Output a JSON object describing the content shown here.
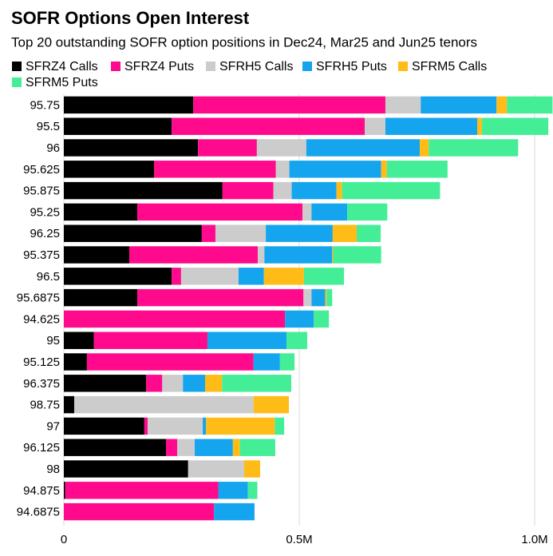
{
  "chart_data": {
    "type": "stacked_bar_horizontal",
    "title": "SOFR Options Open Interest",
    "subtitle": "Top 20 outstanding SOFR option positions in Dec24, Mar25 and Jun25 tenors",
    "categories": [
      "95.75",
      "95.5",
      "96",
      "95.625",
      "95.875",
      "95.25",
      "96.25",
      "95.375",
      "96.5",
      "95.6875",
      "94.625",
      "95",
      "95.125",
      "96.375",
      "98.75",
      "97",
      "96.125",
      "98",
      "94.875",
      "94.6875"
    ],
    "series": [
      {
        "name": "SFRZ4 Calls",
        "color": "#000000",
        "values": [
          275000,
          229000,
          285000,
          192000,
          337000,
          156000,
          293000,
          139000,
          229000,
          156000,
          0,
          64000,
          49000,
          175000,
          22000,
          171000,
          217000,
          264000,
          3000,
          0
        ]
      },
      {
        "name": "SFRZ4 Puts",
        "color": "#ff0a8c",
        "values": [
          408000,
          410000,
          125000,
          258000,
          108000,
          351000,
          29000,
          273000,
          20000,
          353000,
          470000,
          241000,
          354000,
          34000,
          0,
          7000,
          24000,
          0,
          325000,
          319000
        ]
      },
      {
        "name": "SFRH5 Calls",
        "color": "#cccccc",
        "values": [
          75000,
          44000,
          105000,
          29000,
          39000,
          19000,
          107000,
          14000,
          122000,
          17000,
          0,
          0,
          0,
          44000,
          381000,
          117000,
          37000,
          119000,
          0,
          0
        ]
      },
      {
        "name": "SFRH5 Puts",
        "color": "#15a5ee",
        "values": [
          161000,
          195000,
          241000,
          195000,
          95000,
          76000,
          142000,
          144000,
          54000,
          29000,
          61000,
          168000,
          56000,
          47000,
          0,
          7000,
          81000,
          0,
          63000,
          86000
        ]
      },
      {
        "name": "SFRM5 Calls",
        "color": "#ffbb16",
        "values": [
          22000,
          10000,
          19000,
          12000,
          12000,
          0,
          51000,
          2000,
          85000,
          3000,
          0,
          0,
          0,
          36000,
          75000,
          146000,
          15000,
          34000,
          0,
          0
        ]
      },
      {
        "name": "SFRM5 Puts",
        "color": "#43ee96",
        "values": [
          97000,
          141000,
          190000,
          129000,
          208000,
          85000,
          51000,
          102000,
          85000,
          12000,
          32000,
          44000,
          31000,
          147000,
          0,
          20000,
          75000,
          0,
          20000,
          0
        ]
      }
    ],
    "xlim": [
      0,
      1040000
    ],
    "xticks": [
      0,
      {
        "value": 500000,
        "label": "0.5M"
      },
      {
        "value": 1000000,
        "label": "1.0M"
      }
    ],
    "grid": true
  }
}
